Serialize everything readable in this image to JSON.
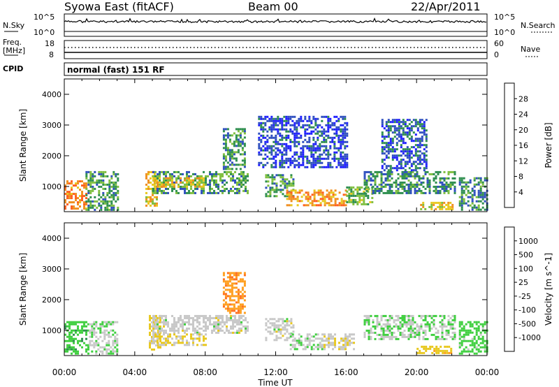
{
  "header": {
    "station": "Syowa East (fitACF)",
    "beam": "Beam 00",
    "date": "22/Apr/2011"
  },
  "status_panels": {
    "nsky_label": "N.Sky",
    "nsky_ticks": [
      "10^5",
      "10^0"
    ],
    "nsearch_label": "N.Search",
    "nsearch_ticks": [
      "10^5",
      "10^0"
    ],
    "freq_label_line1": "Freq.",
    "freq_label_line2": "[MHz]",
    "freq_ticks": [
      "18",
      "8"
    ],
    "nave_label": "Nave",
    "nave_ticks": [
      "60",
      "0"
    ],
    "cpid_label": "CPID",
    "cpid_text": "normal (fast) 151 RF"
  },
  "colors": {
    "power_scale": [
      "#1f1fff",
      "#2f4fbf",
      "#2f8f4f",
      "#7fbf3f",
      "#e8c81f",
      "#f08f1f",
      "#ff5f1f",
      "#ff1f1f"
    ],
    "velocity_scale": [
      "#ff1f1f",
      "#ff6f1f",
      "#ff9f1f",
      "#e8c81f",
      "#c8c8c8",
      "#3fcf3f",
      "#2f8f4f",
      "#3f6fbf",
      "#1f2fbf"
    ]
  },
  "chart_data": [
    {
      "type": "heatmap",
      "panel": "power",
      "xlabel": "",
      "ylabel": "Slant Range [km]",
      "xlim": [
        0,
        24
      ],
      "ylim": [
        180,
        4500
      ],
      "y_ticks": [
        "1000",
        "2000",
        "3000",
        "4000"
      ],
      "colorbar_label": "Power [dB]",
      "colorbar_ticks": [
        "4",
        "8",
        "12",
        "16",
        "20",
        "24",
        "28"
      ],
      "colorbar_range": [
        0,
        30
      ],
      "echo_regions": [
        {
          "t": [
            0.0,
            1.2
          ],
          "r": [
            250,
            1200
          ],
          "value": 22
        },
        {
          "t": [
            1.2,
            3.0
          ],
          "r": [
            250,
            1500
          ],
          "value": 10
        },
        {
          "t": [
            4.6,
            5.2
          ],
          "r": [
            400,
            1500
          ],
          "value": 18
        },
        {
          "t": [
            5.0,
            10.4
          ],
          "r": [
            800,
            1500
          ],
          "value": 10
        },
        {
          "t": [
            5.0,
            8.0
          ],
          "r": [
            1000,
            1300
          ],
          "value": 17
        },
        {
          "t": [
            9.0,
            10.2
          ],
          "r": [
            1600,
            2900
          ],
          "value": 9
        },
        {
          "t": [
            11.4,
            13.0
          ],
          "r": [
            700,
            1400
          ],
          "value": 10
        },
        {
          "t": [
            12.6,
            16.0
          ],
          "r": [
            400,
            900
          ],
          "value": 20
        },
        {
          "t": [
            16.0,
            17.5
          ],
          "r": [
            400,
            1000
          ],
          "value": 12
        },
        {
          "t": [
            17.0,
            22.2
          ],
          "r": [
            800,
            1500
          ],
          "value": 9
        },
        {
          "t": [
            20.2,
            22.0
          ],
          "r": [
            250,
            500
          ],
          "value": 16
        },
        {
          "t": [
            22.4,
            24.0
          ],
          "r": [
            250,
            1300
          ],
          "value": 9
        },
        {
          "t": [
            11.0,
            16.0
          ],
          "r": [
            1600,
            3300
          ],
          "value": 5
        },
        {
          "t": [
            18.0,
            20.5
          ],
          "r": [
            1500,
            3200
          ],
          "value": 6
        }
      ]
    },
    {
      "type": "heatmap",
      "panel": "velocity",
      "xlabel": "Time UT",
      "ylabel": "Slant Range [km]",
      "xlim": [
        0,
        24
      ],
      "ylim": [
        180,
        4500
      ],
      "x_ticks": [
        "00:00",
        "04:00",
        "08:00",
        "12:00",
        "16:00",
        "20:00",
        "00:00"
      ],
      "y_ticks": [
        "1000",
        "2000",
        "3000",
        "4000"
      ],
      "colorbar_label": "Velocity [m s^-1]",
      "colorbar_ticks": [
        "-1000",
        "-500",
        "-100",
        "-25",
        "25",
        "100",
        "500",
        "1000"
      ],
      "colorbar_range": [
        -1200,
        1200
      ],
      "echo_regions": [
        {
          "t": [
            0.0,
            1.4
          ],
          "r": [
            250,
            1300
          ],
          "value": 300
        },
        {
          "t": [
            1.4,
            3.0
          ],
          "r": [
            250,
            1300
          ],
          "value": 80
        },
        {
          "t": [
            4.8,
            5.4
          ],
          "r": [
            400,
            1500
          ],
          "value": -200
        },
        {
          "t": [
            5.0,
            10.4
          ],
          "r": [
            900,
            1500
          ],
          "value": 0
        },
        {
          "t": [
            5.0,
            8.0
          ],
          "r": [
            500,
            900
          ],
          "value": -150
        },
        {
          "t": [
            9.0,
            10.2
          ],
          "r": [
            1600,
            2900
          ],
          "value": -600
        },
        {
          "t": [
            11.4,
            13.0
          ],
          "r": [
            700,
            1400
          ],
          "value": 0
        },
        {
          "t": [
            12.8,
            14.6
          ],
          "r": [
            400,
            900
          ],
          "value": 60
        },
        {
          "t": [
            14.6,
            16.5
          ],
          "r": [
            400,
            900
          ],
          "value": -80
        },
        {
          "t": [
            17.0,
            22.2
          ],
          "r": [
            700,
            1500
          ],
          "value": 120
        },
        {
          "t": [
            20.0,
            22.0
          ],
          "r": [
            250,
            500
          ],
          "value": -300
        },
        {
          "t": [
            22.4,
            24.0
          ],
          "r": [
            250,
            1300
          ],
          "value": 250
        }
      ]
    }
  ],
  "bottom_axis_label": "Time UT"
}
